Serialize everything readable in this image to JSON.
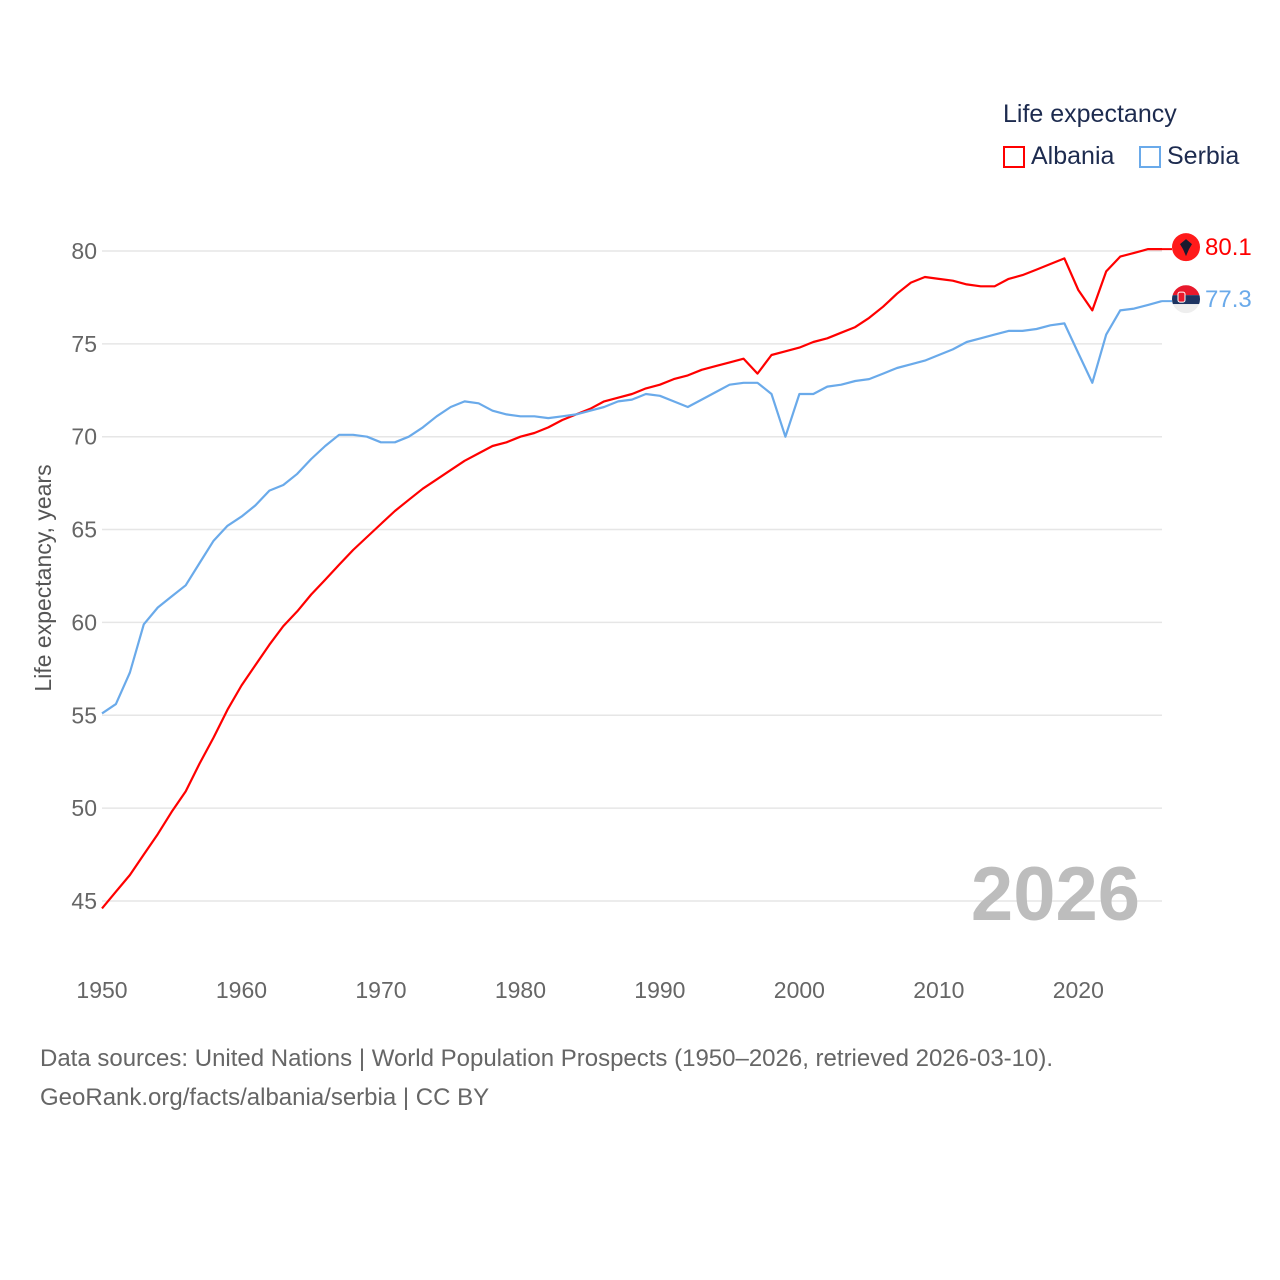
{
  "chart_data": {
    "type": "line",
    "title": "Life expectancy",
    "xlabel": "",
    "ylabel": "Life expectancy, years",
    "xlim": [
      1950,
      2026
    ],
    "ylim": [
      44.5,
      82
    ],
    "x_ticks": [
      1950,
      1960,
      1970,
      1980,
      1990,
      2000,
      2010,
      2020
    ],
    "y_ticks": [
      45,
      50,
      55,
      60,
      65,
      70,
      75,
      80
    ],
    "grid": true,
    "legend_position": "top-right",
    "current_year_label": "2026",
    "series": [
      {
        "name": "Albania",
        "color": "#ff0000",
        "end_label": "80.1",
        "flag_icon": "albania-flag-icon",
        "x": [
          1950,
          1951,
          1952,
          1953,
          1954,
          1955,
          1956,
          1957,
          1958,
          1959,
          1960,
          1961,
          1962,
          1963,
          1964,
          1965,
          1966,
          1967,
          1968,
          1969,
          1970,
          1971,
          1972,
          1973,
          1974,
          1975,
          1976,
          1977,
          1978,
          1979,
          1980,
          1981,
          1982,
          1983,
          1984,
          1985,
          1986,
          1987,
          1988,
          1989,
          1990,
          1991,
          1992,
          1993,
          1994,
          1995,
          1996,
          1997,
          1998,
          1999,
          2000,
          2001,
          2002,
          2003,
          2004,
          2005,
          2006,
          2007,
          2008,
          2009,
          2010,
          2011,
          2012,
          2013,
          2014,
          2015,
          2016,
          2017,
          2018,
          2019,
          2020,
          2021,
          2022,
          2023,
          2024,
          2025,
          2026
        ],
        "values": [
          44.6,
          45.5,
          46.4,
          47.5,
          48.6,
          49.8,
          50.9,
          52.4,
          53.8,
          55.3,
          56.6,
          57.7,
          58.8,
          59.8,
          60.6,
          61.5,
          62.3,
          63.1,
          63.9,
          64.6,
          65.3,
          66.0,
          66.6,
          67.2,
          67.7,
          68.2,
          68.7,
          69.1,
          69.5,
          69.7,
          70.0,
          70.2,
          70.5,
          70.9,
          71.2,
          71.5,
          71.9,
          72.1,
          72.3,
          72.6,
          72.8,
          73.1,
          73.3,
          73.6,
          73.8,
          74.0,
          74.2,
          73.4,
          74.4,
          74.6,
          74.8,
          75.1,
          75.3,
          75.6,
          75.9,
          76.4,
          77.0,
          77.7,
          78.3,
          78.6,
          78.5,
          78.4,
          78.2,
          78.1,
          78.1,
          78.5,
          78.7,
          79.0,
          79.3,
          79.6,
          77.9,
          76.8,
          78.9,
          79.7,
          79.9,
          80.1,
          80.1
        ]
      },
      {
        "name": "Serbia",
        "color": "#6aaaea",
        "end_label": "77.3",
        "flag_icon": "serbia-flag-icon",
        "x": [
          1950,
          1951,
          1952,
          1953,
          1954,
          1955,
          1956,
          1957,
          1958,
          1959,
          1960,
          1961,
          1962,
          1963,
          1964,
          1965,
          1966,
          1967,
          1968,
          1969,
          1970,
          1971,
          1972,
          1973,
          1974,
          1975,
          1976,
          1977,
          1978,
          1979,
          1980,
          1981,
          1982,
          1983,
          1984,
          1985,
          1986,
          1987,
          1988,
          1989,
          1990,
          1991,
          1992,
          1993,
          1994,
          1995,
          1996,
          1997,
          1998,
          1999,
          2000,
          2001,
          2002,
          2003,
          2004,
          2005,
          2006,
          2007,
          2008,
          2009,
          2010,
          2011,
          2012,
          2013,
          2014,
          2015,
          2016,
          2017,
          2018,
          2019,
          2020,
          2021,
          2022,
          2023,
          2024,
          2025,
          2026
        ],
        "values": [
          55.1,
          55.6,
          57.3,
          59.9,
          60.8,
          61.4,
          62.0,
          63.2,
          64.4,
          65.2,
          65.7,
          66.3,
          67.1,
          67.4,
          68.0,
          68.8,
          69.5,
          70.1,
          70.1,
          70.0,
          69.7,
          69.7,
          70.0,
          70.5,
          71.1,
          71.6,
          71.9,
          71.8,
          71.4,
          71.2,
          71.1,
          71.1,
          71.0,
          71.1,
          71.2,
          71.4,
          71.6,
          71.9,
          72.0,
          72.3,
          72.2,
          71.9,
          71.6,
          72.0,
          72.4,
          72.8,
          72.9,
          72.9,
          72.3,
          70.0,
          72.3,
          72.3,
          72.7,
          72.8,
          73.0,
          73.1,
          73.4,
          73.7,
          73.9,
          74.1,
          74.4,
          74.7,
          75.1,
          75.3,
          75.5,
          75.7,
          75.7,
          75.8,
          76.0,
          76.1,
          74.5,
          72.9,
          75.5,
          76.8,
          76.9,
          77.1,
          77.3
        ]
      }
    ]
  },
  "legend": {
    "title": "Life expectancy",
    "items": [
      "Albania",
      "Serbia"
    ]
  },
  "footer": {
    "line1": "Data sources: United Nations | World Population Prospects (1950–2026, retrieved 2026-03-10).",
    "line2": "GeoRank.org/facts/albania/serbia | CC BY"
  }
}
